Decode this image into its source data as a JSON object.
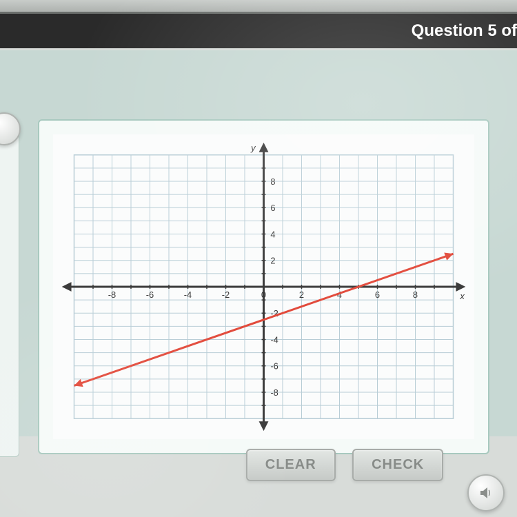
{
  "header": {
    "question_label": "Question 5 of"
  },
  "buttons": {
    "clear": "CLEAR",
    "check": "CHECK"
  },
  "chart": {
    "type": "line",
    "xlim": [
      -10,
      10
    ],
    "ylim": [
      -10,
      10
    ],
    "xtick_step": 1,
    "ytick_step": 1,
    "xlabel_ticks": [
      -8,
      -6,
      -4,
      -2,
      0,
      2,
      4,
      6,
      8
    ],
    "ylabel_ticks": [
      -8,
      -6,
      -4,
      -2,
      2,
      4,
      6,
      8
    ],
    "x_axis_label": "x",
    "y_axis_label": "y",
    "background_color": "#fbfcfc",
    "grid_color": "#b8cdd6",
    "axis_color": "#3a3a3a",
    "tick_label_color": "#3a3a3a",
    "tick_label_fontsize": 13,
    "line": {
      "color": "#e24a3b",
      "width": 3,
      "points": [
        [
          -10,
          -7.5
        ],
        [
          10,
          2.5
        ]
      ],
      "slope": 0.5,
      "y_intercept": -2.5,
      "arrow_start": true,
      "arrow_end": true
    }
  }
}
